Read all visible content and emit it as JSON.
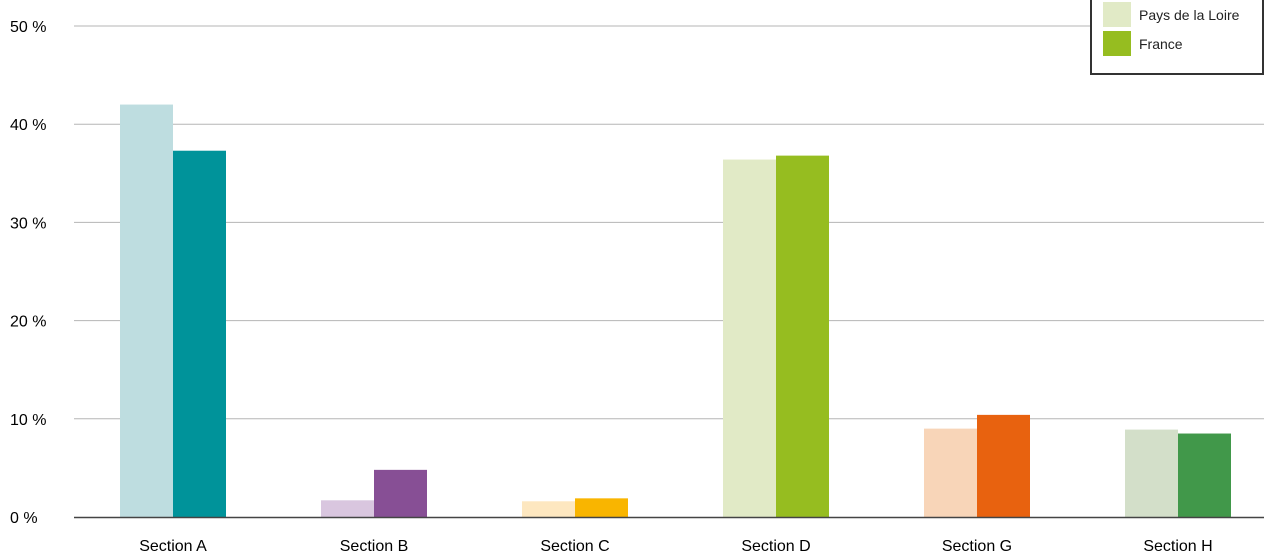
{
  "chart_data": {
    "type": "bar",
    "categories": [
      "Section A",
      "Section B",
      "Section C",
      "Section D",
      "Section G",
      "Section H"
    ],
    "series": [
      {
        "name": "Pays de la Loire",
        "values": [
          42.0,
          1.7,
          1.6,
          36.4,
          9.0,
          8.9
        ],
        "colors": [
          "#bedde0",
          "#d9c6df",
          "#fde7c0",
          "#e1eac6",
          "#f8d5b8",
          "#d3dfc9"
        ]
      },
      {
        "name": "France",
        "values": [
          37.3,
          4.8,
          1.9,
          36.8,
          10.4,
          8.5
        ],
        "colors": [
          "#00939a",
          "#874f95",
          "#f9b500",
          "#96bd20",
          "#e8620f",
          "#41984a"
        ]
      }
    ],
    "yticks": [
      "0 %",
      "10 %",
      "20 %",
      "30 %",
      "40 %",
      "50 %"
    ],
    "ylim": [
      0,
      50
    ],
    "grid": true,
    "legend_position": "top-right",
    "legend_colors": [
      "#e1eac6",
      "#96bd20"
    ]
  }
}
